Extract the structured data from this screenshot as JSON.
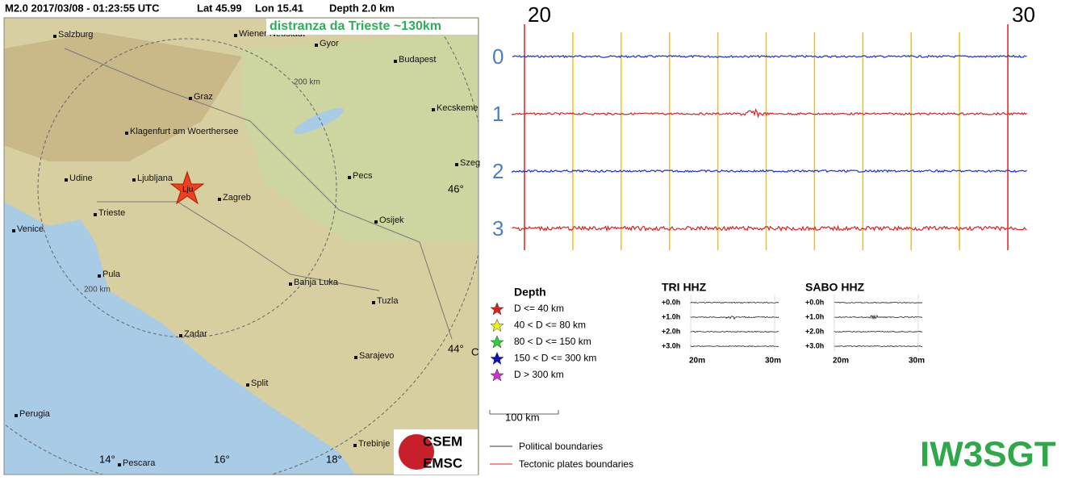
{
  "header": {
    "event": "M2.0  2017/03/08 - 01:23:55 UTC",
    "lat": "Lat 45.99",
    "lon": "Lon 15.41",
    "depth": "Depth  2.0 km"
  },
  "map": {
    "annotation": "distranza da Trieste ~130km",
    "epicenter": "Lju",
    "cities": [
      "Salzburg",
      "Wiener Neustadt",
      "Gyor",
      "Budapest",
      "Graz",
      "Kecskeme",
      "Klagenfurt am Woerthersee",
      "Udine",
      "Ljubljana",
      "Zagreb",
      "Pecs",
      "Szeg",
      "Trieste",
      "Osijek",
      "Venice",
      "Pula",
      "Banja Luka",
      "Tuzla",
      "Zadar",
      "Sarajevo",
      "Split",
      "Perugia",
      "Trebinje",
      "Pescara"
    ],
    "ranges": [
      "200 km",
      "200 km"
    ],
    "lat_labels": [
      "46°",
      "44°",
      "C"
    ],
    "lon_labels": [
      "14°",
      "16°",
      "18°"
    ],
    "scale": "100 km"
  },
  "legend": {
    "title": "Depth",
    "items": [
      "D <= 40 km",
      "40 < D <= 80 km",
      "80 < D <= 150 km",
      "150 < D <= 300 km",
      "D > 300 km"
    ],
    "lines": [
      "Political boundaries",
      "Tectonic plates boundaries"
    ]
  },
  "logo": {
    "top": "CSEM",
    "bottom": "EMSC"
  },
  "seismogram": {
    "time_labels": [
      "20",
      "30"
    ],
    "traces": [
      "0",
      "1",
      "2",
      "3"
    ]
  },
  "stations": [
    {
      "name": "TRI HHZ",
      "rows": [
        "+0.0h",
        "+1.0h",
        "+2.0h",
        "+3.0h"
      ],
      "axis": [
        "20m",
        "30m"
      ]
    },
    {
      "name": "SABO HHZ",
      "rows": [
        "+0.0h",
        "+1.0h",
        "+2.0h",
        "+3.0h"
      ],
      "axis": [
        "20m",
        "30m"
      ]
    }
  ],
  "callsign": "IW3SGT"
}
